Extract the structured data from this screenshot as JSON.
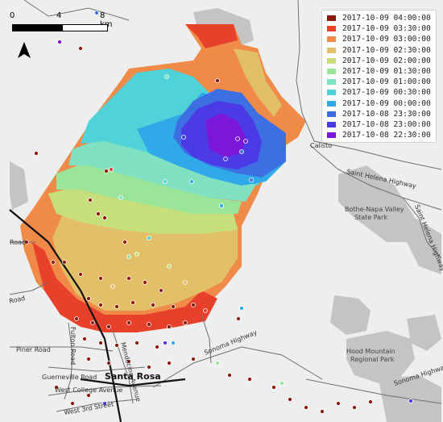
{
  "scale": {
    "tick0": "0",
    "tick4": "4",
    "tick8": "8 km"
  },
  "legend": [
    {
      "label": "2017-10-09 04:00:00",
      "color": "#8b1a0e"
    },
    {
      "label": "2017-10-09 03:30:00",
      "color": "#e8412b"
    },
    {
      "label": "2017-10-09 03:00:00",
      "color": "#f08a48"
    },
    {
      "label": "2017-10-09 02:30:00",
      "color": "#e2c069"
    },
    {
      "label": "2017-10-09 02:00:00",
      "color": "#c6df7a"
    },
    {
      "label": "2017-10-09 01:30:00",
      "color": "#9ae59a"
    },
    {
      "label": "2017-10-09 01:00:00",
      "color": "#7fe0c2"
    },
    {
      "label": "2017-10-09 00:30:00",
      "color": "#4fd2d8"
    },
    {
      "label": "2017-10-09 00:00:00",
      "color": "#2fa9e8"
    },
    {
      "label": "2017-10-08 23:30:00",
      "color": "#3d6fe2"
    },
    {
      "label": "2017-10-08 23:00:00",
      "color": "#4a3be6"
    },
    {
      "label": "2017-10-08 22:30:00",
      "color": "#7a17d8"
    }
  ],
  "places": {
    "santa_rosa": "Santa Rosa",
    "calistoga": "Calisto",
    "bothe": "Bothe-Napa Valley",
    "bothe2": "State Park",
    "hood": "Hood Mountain",
    "hood2": "Regional Park"
  },
  "roads": {
    "saint_helena": "Saint Helena Highway",
    "saint_helena2": "Saint Helena Highway",
    "piner": "Piner Road",
    "guerneville": "Guerneville Road",
    "west_college": "West College Avenue",
    "west_3rd": "West 3rd Street",
    "fulton": "Fulton Road",
    "mendocino": "Mendocino Avenue",
    "sonoma_hwy": "Sonoma Highway",
    "sonoma_hwy2": "Sonoma Highway",
    "road_left1": "Road",
    "road_left2": "Road"
  },
  "icons": {
    "north": "north-arrow-icon"
  }
}
